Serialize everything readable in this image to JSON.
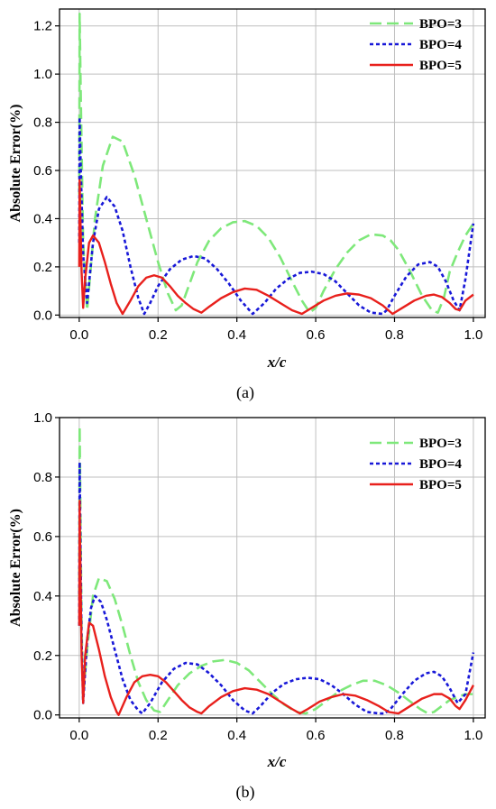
{
  "chart_data": [
    {
      "type": "line",
      "caption": "(a)",
      "xlabel": "x/c",
      "ylabel": "Absolute Error(%)",
      "xlim": [
        -0.05,
        1.03
      ],
      "ylim": [
        -0.01,
        1.27
      ],
      "xticks": [
        0.0,
        0.2,
        0.4,
        0.6,
        0.8,
        1.0
      ],
      "xtick_labels": [
        "0.0",
        "0.2",
        "0.4",
        "0.6",
        "0.8",
        "1.0"
      ],
      "yticks": [
        0.0,
        0.2,
        0.4,
        0.6,
        0.8,
        1.0,
        1.2
      ],
      "ytick_labels": [
        "0.0",
        "0.2",
        "0.4",
        "0.6",
        "0.8",
        "1.0",
        "1.2"
      ],
      "grid": true,
      "legend_position": "top-right",
      "series": [
        {
          "name": "BPO=3",
          "color": "#7ee87a",
          "dash": "dashed",
          "x": [
            0.0,
            0.001,
            0.004,
            0.01,
            0.02,
            0.04,
            0.06,
            0.085,
            0.11,
            0.14,
            0.17,
            0.2,
            0.225,
            0.245,
            0.26,
            0.28,
            0.3,
            0.33,
            0.36,
            0.39,
            0.42,
            0.45,
            0.48,
            0.51,
            0.54,
            0.565,
            0.585,
            0.6,
            0.62,
            0.65,
            0.68,
            0.71,
            0.74,
            0.77,
            0.79,
            0.81,
            0.84,
            0.87,
            0.895,
            0.91,
            0.925,
            0.94,
            0.96,
            0.98,
            1.0
          ],
          "y": [
            0.5,
            1.25,
            0.9,
            0.3,
            0.02,
            0.4,
            0.62,
            0.74,
            0.72,
            0.58,
            0.4,
            0.22,
            0.09,
            0.02,
            0.04,
            0.13,
            0.22,
            0.31,
            0.36,
            0.385,
            0.39,
            0.37,
            0.32,
            0.24,
            0.14,
            0.06,
            0.01,
            0.03,
            0.1,
            0.19,
            0.26,
            0.31,
            0.335,
            0.33,
            0.31,
            0.27,
            0.18,
            0.08,
            0.02,
            0.01,
            0.07,
            0.18,
            0.26,
            0.33,
            0.38
          ]
        },
        {
          "name": "BPO=4",
          "color": "#1818d8",
          "dash": "dotted",
          "x": [
            0.0,
            0.001,
            0.004,
            0.01,
            0.02,
            0.035,
            0.05,
            0.07,
            0.09,
            0.11,
            0.13,
            0.15,
            0.165,
            0.18,
            0.2,
            0.23,
            0.26,
            0.29,
            0.32,
            0.35,
            0.38,
            0.41,
            0.44,
            0.47,
            0.5,
            0.53,
            0.56,
            0.59,
            0.62,
            0.65,
            0.68,
            0.71,
            0.74,
            0.77,
            0.78,
            0.8,
            0.83,
            0.86,
            0.89,
            0.91,
            0.93,
            0.95,
            0.965,
            0.98,
            1.0
          ],
          "y": [
            0.3,
            0.82,
            0.6,
            0.25,
            0.05,
            0.3,
            0.44,
            0.49,
            0.45,
            0.35,
            0.2,
            0.07,
            0.005,
            0.05,
            0.12,
            0.19,
            0.23,
            0.245,
            0.235,
            0.19,
            0.13,
            0.06,
            0.005,
            0.05,
            0.11,
            0.15,
            0.175,
            0.18,
            0.17,
            0.14,
            0.09,
            0.04,
            0.01,
            0.005,
            0.02,
            0.08,
            0.16,
            0.21,
            0.22,
            0.2,
            0.14,
            0.06,
            0.02,
            0.15,
            0.38
          ]
        },
        {
          "name": "BPO=5",
          "color": "#e8201c",
          "dash": "solid",
          "x": [
            0.0,
            0.001,
            0.003,
            0.006,
            0.01,
            0.015,
            0.025,
            0.035,
            0.05,
            0.065,
            0.08,
            0.095,
            0.11,
            0.13,
            0.15,
            0.17,
            0.19,
            0.21,
            0.23,
            0.25,
            0.27,
            0.29,
            0.31,
            0.33,
            0.36,
            0.39,
            0.42,
            0.45,
            0.48,
            0.51,
            0.54,
            0.565,
            0.59,
            0.62,
            0.65,
            0.68,
            0.71,
            0.74,
            0.77,
            0.795,
            0.82,
            0.85,
            0.88,
            0.9,
            0.92,
            0.94,
            0.955,
            0.965,
            0.98,
            1.0
          ],
          "y": [
            0.2,
            0.56,
            0.4,
            0.18,
            0.03,
            0.15,
            0.3,
            0.33,
            0.3,
            0.22,
            0.13,
            0.05,
            0.005,
            0.06,
            0.12,
            0.155,
            0.165,
            0.155,
            0.12,
            0.08,
            0.05,
            0.025,
            0.01,
            0.035,
            0.07,
            0.095,
            0.11,
            0.105,
            0.08,
            0.05,
            0.02,
            0.005,
            0.03,
            0.06,
            0.08,
            0.09,
            0.085,
            0.07,
            0.04,
            0.005,
            0.03,
            0.06,
            0.08,
            0.085,
            0.075,
            0.05,
            0.025,
            0.02,
            0.06,
            0.085
          ]
        }
      ]
    },
    {
      "type": "line",
      "caption": "(b)",
      "xlabel": "x/c",
      "ylabel": "Absolute Error(%)",
      "xlim": [
        -0.05,
        1.03
      ],
      "ylim": [
        -0.01,
        1.0
      ],
      "xticks": [
        0.0,
        0.2,
        0.4,
        0.6,
        0.8,
        1.0
      ],
      "xtick_labels": [
        "0.0",
        "0.2",
        "0.4",
        "0.6",
        "0.8",
        "1.0"
      ],
      "yticks": [
        0.0,
        0.2,
        0.4,
        0.6,
        0.8,
        1.0
      ],
      "ytick_labels": [
        "0.0",
        "0.2",
        "0.4",
        "0.6",
        "0.8",
        "1.0"
      ],
      "grid": true,
      "legend_position": "top-right",
      "series": [
        {
          "name": "BPO=3",
          "color": "#7ee87a",
          "dash": "dashed",
          "x": [
            0.0,
            0.001,
            0.003,
            0.006,
            0.01,
            0.02,
            0.035,
            0.05,
            0.07,
            0.09,
            0.11,
            0.13,
            0.15,
            0.17,
            0.19,
            0.205,
            0.22,
            0.25,
            0.28,
            0.31,
            0.34,
            0.37,
            0.4,
            0.43,
            0.46,
            0.49,
            0.52,
            0.55,
            0.575,
            0.6,
            0.63,
            0.66,
            0.69,
            0.72,
            0.75,
            0.78,
            0.81,
            0.84,
            0.865,
            0.885,
            0.9,
            0.92,
            0.94,
            0.96,
            0.98,
            1.0
          ],
          "y": [
            0.4,
            0.97,
            0.7,
            0.3,
            0.06,
            0.22,
            0.4,
            0.46,
            0.45,
            0.39,
            0.3,
            0.2,
            0.11,
            0.05,
            0.015,
            0.01,
            0.04,
            0.1,
            0.14,
            0.165,
            0.18,
            0.185,
            0.175,
            0.15,
            0.11,
            0.07,
            0.035,
            0.01,
            0.005,
            0.02,
            0.05,
            0.08,
            0.1,
            0.115,
            0.115,
            0.1,
            0.075,
            0.045,
            0.02,
            0.005,
            0.01,
            0.03,
            0.05,
            0.06,
            0.07,
            0.07
          ]
        },
        {
          "name": "BPO=4",
          "color": "#1818d8",
          "dash": "dotted",
          "x": [
            0.0,
            0.001,
            0.003,
            0.006,
            0.01,
            0.02,
            0.03,
            0.04,
            0.055,
            0.07,
            0.09,
            0.11,
            0.13,
            0.15,
            0.16,
            0.18,
            0.21,
            0.24,
            0.27,
            0.3,
            0.33,
            0.36,
            0.39,
            0.42,
            0.44,
            0.46,
            0.49,
            0.52,
            0.55,
            0.58,
            0.61,
            0.64,
            0.67,
            0.7,
            0.73,
            0.76,
            0.775,
            0.79,
            0.82,
            0.85,
            0.88,
            0.9,
            0.92,
            0.94,
            0.96,
            0.98,
            1.0
          ],
          "y": [
            0.3,
            0.85,
            0.6,
            0.25,
            0.04,
            0.25,
            0.36,
            0.4,
            0.38,
            0.32,
            0.22,
            0.12,
            0.05,
            0.015,
            0.005,
            0.04,
            0.11,
            0.155,
            0.175,
            0.17,
            0.14,
            0.1,
            0.05,
            0.015,
            0.005,
            0.03,
            0.075,
            0.105,
            0.12,
            0.125,
            0.12,
            0.1,
            0.07,
            0.035,
            0.01,
            0.005,
            0.005,
            0.02,
            0.07,
            0.115,
            0.14,
            0.145,
            0.13,
            0.09,
            0.04,
            0.07,
            0.21
          ]
        },
        {
          "name": "BPO=5",
          "color": "#e8201c",
          "dash": "solid",
          "x": [
            0.0,
            0.001,
            0.003,
            0.006,
            0.01,
            0.015,
            0.025,
            0.035,
            0.05,
            0.065,
            0.08,
            0.095,
            0.1,
            0.12,
            0.14,
            0.16,
            0.18,
            0.2,
            0.22,
            0.24,
            0.26,
            0.28,
            0.3,
            0.31,
            0.33,
            0.36,
            0.39,
            0.42,
            0.45,
            0.48,
            0.51,
            0.54,
            0.56,
            0.58,
            0.61,
            0.64,
            0.67,
            0.7,
            0.73,
            0.76,
            0.785,
            0.81,
            0.84,
            0.87,
            0.9,
            0.92,
            0.94,
            0.955,
            0.965,
            0.98,
            1.0
          ],
          "y": [
            0.3,
            0.72,
            0.5,
            0.2,
            0.04,
            0.2,
            0.31,
            0.3,
            0.22,
            0.13,
            0.06,
            0.01,
            0.0,
            0.06,
            0.11,
            0.13,
            0.135,
            0.13,
            0.11,
            0.08,
            0.05,
            0.025,
            0.01,
            0.005,
            0.03,
            0.06,
            0.08,
            0.09,
            0.085,
            0.07,
            0.045,
            0.02,
            0.005,
            0.02,
            0.045,
            0.06,
            0.07,
            0.065,
            0.05,
            0.03,
            0.01,
            0.005,
            0.03,
            0.055,
            0.07,
            0.07,
            0.055,
            0.03,
            0.02,
            0.05,
            0.1
          ]
        }
      ]
    }
  ]
}
